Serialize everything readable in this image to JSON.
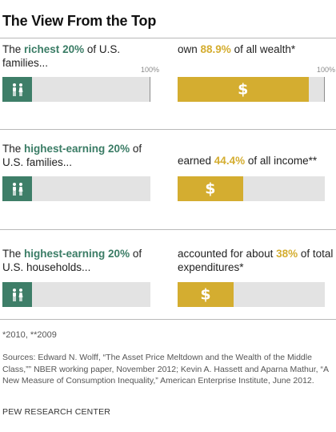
{
  "title": "The View From the Top",
  "axis_max_label": "100%",
  "colors": {
    "green": "#3e7e68",
    "gold": "#d4ad30",
    "track": "#e3e3e3"
  },
  "icons": {
    "left": "people-icon",
    "right": "dollar-icon"
  },
  "dollar_glyph": "$",
  "chart_data": {
    "type": "bar",
    "categories": [
      "wealth",
      "income",
      "expenditures"
    ],
    "series": [
      {
        "values": [
          20,
          20,
          20
        ]
      },
      {
        "values": [
          88.9,
          44.4,
          38
        ]
      }
    ],
    "ylim": [
      0,
      100
    ],
    "panels": [
      {
        "left": [
          "The ",
          "richest",
          " ",
          "20%",
          " of U.S. families..."
        ],
        "right": [
          "own ",
          "88.9%",
          " of all wealth*"
        ]
      },
      {
        "left": [
          "The ",
          "highest-earning",
          " ",
          "20%",
          " of U.S. families..."
        ],
        "right": [
          "earned ",
          "44.4%",
          " of all income**"
        ]
      },
      {
        "left": [
          "The ",
          "highest-earning",
          " ",
          "20%",
          " of U.S. households..."
        ],
        "right": [
          "accounted for about ",
          "38%",
          " of total expenditures*"
        ]
      }
    ]
  },
  "footnote": "*2010, **2009",
  "sources": "Sources: Edward N. Wolff, “The Asset Price Meltdown and the Wealth of the Middle Class,”” NBER working paper, November 2012; Kevin A. Hassett and Aparna Mathur, “A New Measure of Consumption Inequality,” American Enterprise Institute, June 2012.",
  "brand": "PEW RESEARCH CENTER"
}
